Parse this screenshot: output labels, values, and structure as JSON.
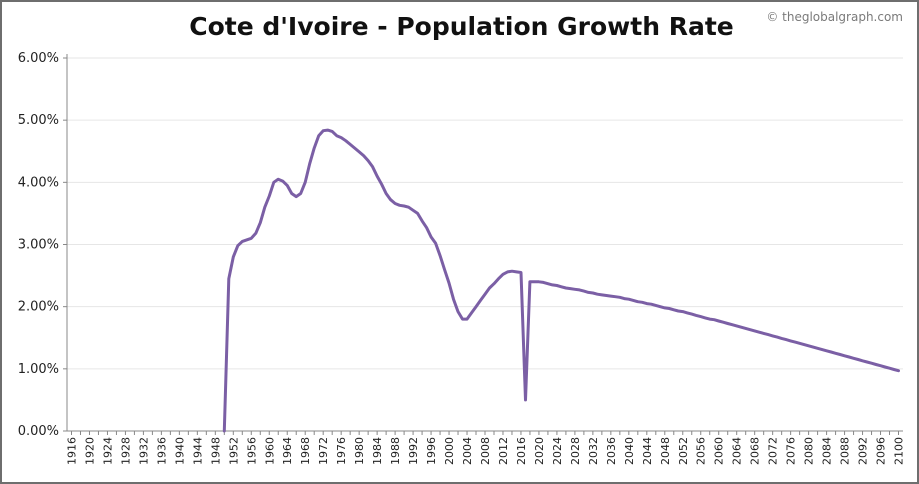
{
  "chart_data": {
    "type": "line",
    "title": "Cote d'Ivoire - Population Growth Rate",
    "credit": "© theglobalgraph.com",
    "xlabel": "",
    "ylabel": "",
    "xlim": [
      1915,
      2101
    ],
    "ylim": [
      0,
      6
    ],
    "y_tick_values": [
      0,
      1,
      2,
      3,
      4,
      5,
      6
    ],
    "y_tick_labels": [
      "0.00%",
      "1.00%",
      "2.00%",
      "3.00%",
      "4.00%",
      "5.00%",
      "6.00%"
    ],
    "x_tick_labels": [
      "1916",
      "1920",
      "1924",
      "1928",
      "1932",
      "1936",
      "1940",
      "1944",
      "1948",
      "1952",
      "1956",
      "1960",
      "1964",
      "1968",
      "1972",
      "1976",
      "1980",
      "1984",
      "1988",
      "1992",
      "1996",
      "2000",
      "2004",
      "2008",
      "2012",
      "2016",
      "2020",
      "2024",
      "2028",
      "2032",
      "2036",
      "2040",
      "2044",
      "2048",
      "2052",
      "2056",
      "2060",
      "2064",
      "2068",
      "2072",
      "2076",
      "2080",
      "2084",
      "2088",
      "2092",
      "2096",
      "2100"
    ],
    "grid": true,
    "line_color": "#7b5fa5",
    "series": [
      {
        "name": "",
        "x": [
          1950,
          1951,
          1952,
          1953,
          1954,
          1956,
          1957,
          1958,
          1959,
          1960,
          1961,
          1962,
          1963,
          1964,
          1965,
          1966,
          1967,
          1968,
          1969,
          1970,
          1971,
          1972,
          1973,
          1974,
          1975,
          1976,
          1977,
          1978,
          1979,
          1980,
          1981,
          1982,
          1983,
          1984,
          1985,
          1986,
          1987,
          1988,
          1989,
          1990,
          1991,
          1992,
          1993,
          1994,
          1995,
          1996,
          1997,
          1998,
          1999,
          2000,
          2001,
          2002,
          2003,
          2004,
          2005,
          2006,
          2007,
          2008,
          2009,
          2010,
          2011,
          2012,
          2013,
          2014,
          2015,
          2016,
          2017,
          2018,
          2019,
          2020,
          2021,
          2022,
          2023,
          2024,
          2025,
          2026,
          2027,
          2028,
          2029,
          2030,
          2031,
          2032,
          2033,
          2034,
          2035,
          2036,
          2037,
          2038,
          2039,
          2040,
          2041,
          2042,
          2043,
          2044,
          2045,
          2046,
          2047,
          2048,
          2049,
          2050,
          2051,
          2052,
          2053,
          2054,
          2055,
          2056,
          2057,
          2058,
          2059,
          2060,
          2061,
          2062,
          2063,
          2064,
          2065,
          2066,
          2067,
          2068,
          2069,
          2070,
          2071,
          2072,
          2073,
          2074,
          2075,
          2076,
          2077,
          2078,
          2079,
          2080,
          2081,
          2082,
          2083,
          2084,
          2085,
          2086,
          2087,
          2088,
          2089,
          2090,
          2091,
          2092,
          2093,
          2094,
          2095,
          2096,
          2097,
          2098,
          2099,
          2100
        ],
        "values": [
          0,
          2.45,
          2.8,
          2.98,
          3.05,
          3.1,
          3.18,
          3.35,
          3.6,
          3.78,
          4.0,
          4.05,
          4.02,
          3.95,
          3.82,
          3.77,
          3.82,
          4.0,
          4.3,
          4.55,
          4.75,
          4.83,
          4.84,
          4.82,
          4.75,
          4.72,
          4.67,
          4.61,
          4.55,
          4.49,
          4.43,
          4.35,
          4.25,
          4.1,
          3.97,
          3.82,
          3.72,
          3.66,
          3.63,
          3.62,
          3.6,
          3.55,
          3.5,
          3.38,
          3.27,
          3.12,
          3.02,
          2.82,
          2.6,
          2.38,
          2.12,
          1.92,
          1.8,
          1.8,
          1.9,
          2.0,
          2.1,
          2.2,
          2.3,
          2.37,
          2.45,
          2.52,
          2.56,
          2.57,
          2.56,
          2.55,
          0.5,
          2.4,
          2.4,
          2.4,
          2.39,
          2.37,
          2.35,
          2.34,
          2.32,
          2.3,
          2.29,
          2.28,
          2.27,
          2.25,
          2.23,
          2.22,
          2.2,
          2.19,
          2.18,
          2.17,
          2.16,
          2.15,
          2.13,
          2.12,
          2.1,
          2.08,
          2.07,
          2.05,
          2.04,
          2.02,
          2.0,
          1.98,
          1.97,
          1.95,
          1.93,
          1.92,
          1.9,
          1.88,
          1.86,
          1.84,
          1.82,
          1.8,
          1.79,
          1.77,
          1.75,
          1.73,
          1.71,
          1.69,
          1.67,
          1.65,
          1.63,
          1.61,
          1.59,
          1.57,
          1.55,
          1.53,
          1.51,
          1.49,
          1.47,
          1.45,
          1.43,
          1.41,
          1.39,
          1.37,
          1.35,
          1.33,
          1.31,
          1.29,
          1.27,
          1.25,
          1.23,
          1.21,
          1.19,
          1.17,
          1.15,
          1.13,
          1.11,
          1.09,
          1.07,
          1.05,
          1.03,
          1.01,
          0.99,
          0.97
        ]
      }
    ]
  }
}
